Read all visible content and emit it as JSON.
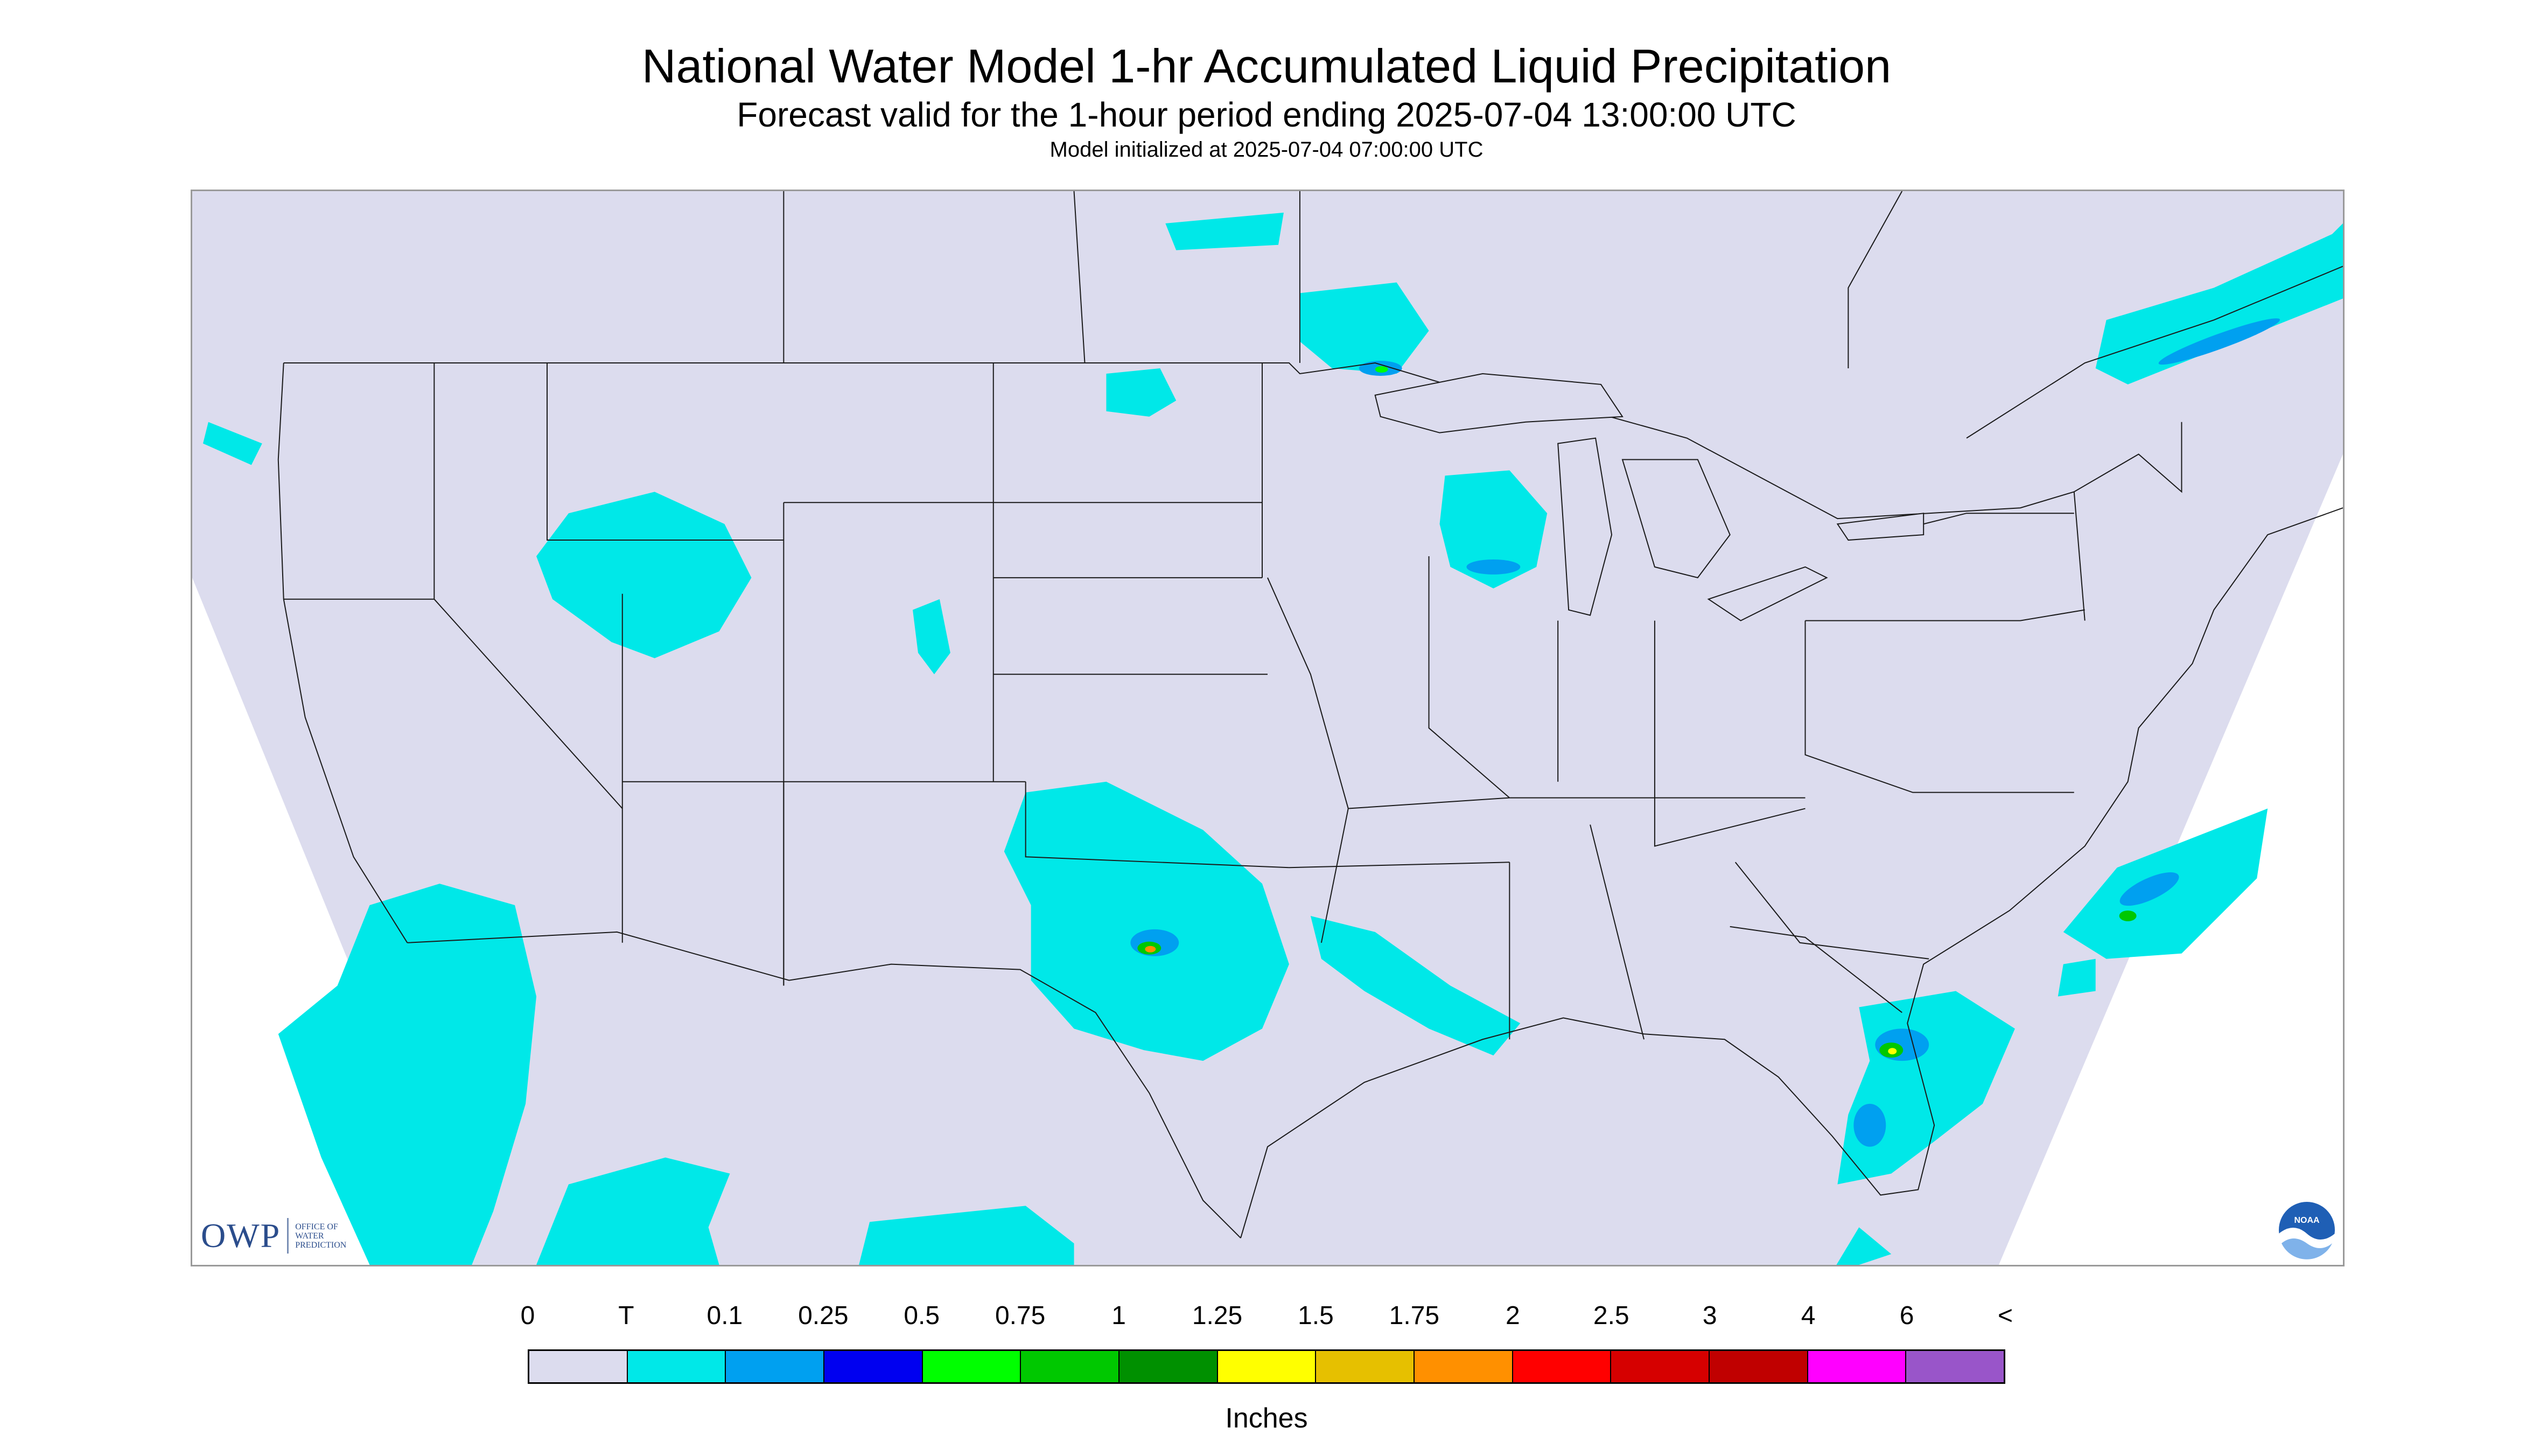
{
  "title": "National Water Model 1-hr Accumulated Liquid Precipitation",
  "subtitle": "Forecast valid for the 1-hour period ending 2025-07-04 13:00:00 UTC",
  "init_line": "Model initialized at 2025-07-04 07:00:00 UTC",
  "logos": {
    "owp_mark": "OWP",
    "owp_text_lines": [
      "OFFICE OF",
      "WATER",
      "PREDICTION"
    ],
    "noaa_text": "NOAA"
  },
  "colors": {
    "background": "#dcdcee",
    "no_data": "#ffffff",
    "boundaries": "#1a1a1a",
    "precip_light": "#00e8e8"
  },
  "legend": {
    "tick_labels": [
      "0",
      "T",
      "0.1",
      "0.25",
      "0.5",
      "0.75",
      "1",
      "1.25",
      "1.5",
      "1.75",
      "2",
      "2.5",
      "3",
      "4",
      "6",
      "<"
    ],
    "swatch_colors": [
      "#dcdcee",
      "#00e8e8",
      "#00a0f0",
      "#0000f0",
      "#00ff00",
      "#00c800",
      "#009000",
      "#ffff00",
      "#e6c000",
      "#ff9000",
      "#ff0000",
      "#d60000",
      "#c00000",
      "#ff00ff",
      "#9955c9"
    ],
    "units_label": "Inches"
  }
}
